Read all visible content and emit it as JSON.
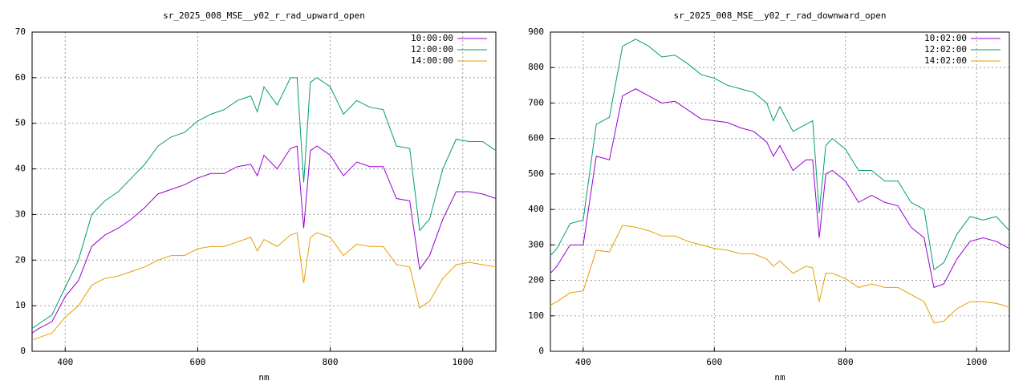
{
  "chart_data": [
    {
      "type": "line",
      "title": "sr_2025_008_MSE__y02_r_rad_upward_open",
      "x_label": "nm",
      "x": [
        350,
        360,
        380,
        400,
        420,
        440,
        460,
        480,
        500,
        520,
        540,
        560,
        580,
        600,
        620,
        640,
        660,
        680,
        690,
        700,
        720,
        740,
        750,
        760,
        770,
        780,
        800,
        820,
        840,
        860,
        880,
        900,
        920,
        935,
        950,
        970,
        990,
        1010,
        1030,
        1050
      ],
      "xlim": [
        350,
        1050
      ],
      "xticks": [
        400,
        600,
        800,
        1000
      ],
      "ylim": [
        0,
        70
      ],
      "yticks": [
        0,
        10,
        20,
        30,
        40,
        50,
        60,
        70
      ],
      "grid": true,
      "legend": "top-right",
      "series": [
        {
          "name": "10:00:00",
          "color": "#9400d3",
          "values": [
            4,
            5,
            6.5,
            12,
            15.5,
            23,
            25.5,
            27,
            29,
            31.5,
            34.5,
            35.5,
            36.5,
            38,
            39,
            39,
            40.5,
            41,
            38.5,
            43,
            40,
            44.5,
            45,
            27,
            44,
            45,
            43,
            38.5,
            41.5,
            40.5,
            40.5,
            33.5,
            33,
            18,
            21,
            29,
            35,
            35,
            34.5,
            33.5
          ]
        },
        {
          "name": "12:00:00",
          "color": "#009e73",
          "values": [
            5,
            6,
            8,
            14,
            20,
            30,
            33,
            35,
            38,
            41,
            45,
            47,
            48,
            50.5,
            52,
            53,
            55,
            56,
            52.5,
            58,
            54,
            60,
            60,
            37,
            59,
            60,
            58,
            52,
            55,
            53.5,
            53,
            45,
            44.5,
            26.5,
            29,
            40,
            46.5,
            46,
            46,
            44
          ]
        },
        {
          "name": "14:00:00",
          "color": "#e69f00",
          "values": [
            2.5,
            3,
            4,
            7.5,
            10,
            14.5,
            16,
            16.5,
            17.5,
            18.5,
            20,
            21,
            21,
            22.5,
            23,
            23,
            24,
            25,
            22,
            24.5,
            23,
            25.5,
            26,
            15,
            25,
            26,
            25,
            21,
            23.5,
            23,
            23,
            19,
            18.5,
            9.5,
            11,
            16,
            19,
            19.5,
            19,
            18.5
          ]
        }
      ]
    },
    {
      "type": "line",
      "title": "sr_2025_008_MSE__y02_r_rad_downward_open",
      "x_label": "nm",
      "x": [
        350,
        360,
        380,
        400,
        420,
        440,
        460,
        480,
        500,
        520,
        540,
        560,
        580,
        600,
        620,
        640,
        660,
        680,
        690,
        700,
        720,
        740,
        750,
        760,
        770,
        780,
        800,
        820,
        840,
        860,
        880,
        900,
        920,
        935,
        950,
        970,
        990,
        1010,
        1030,
        1050
      ],
      "xlim": [
        350,
        1050
      ],
      "xticks": [
        400,
        600,
        800,
        1000
      ],
      "ylim": [
        0,
        900
      ],
      "yticks": [
        0,
        100,
        200,
        300,
        400,
        500,
        600,
        700,
        800,
        900
      ],
      "grid": true,
      "legend": "top-right",
      "series": [
        {
          "name": "10:02:00",
          "color": "#9400d3",
          "values": [
            220,
            240,
            300,
            300,
            550,
            540,
            720,
            740,
            720,
            700,
            705,
            680,
            655,
            650,
            645,
            630,
            620,
            590,
            550,
            580,
            510,
            540,
            540,
            320,
            500,
            510,
            480,
            420,
            440,
            420,
            410,
            350,
            320,
            180,
            190,
            260,
            310,
            320,
            310,
            290
          ]
        },
        {
          "name": "12:02:00",
          "color": "#009e73",
          "values": [
            270,
            290,
            360,
            370,
            640,
            660,
            860,
            880,
            860,
            830,
            835,
            810,
            780,
            770,
            750,
            740,
            730,
            700,
            650,
            690,
            620,
            640,
            650,
            390,
            580,
            600,
            570,
            510,
            510,
            480,
            480,
            420,
            400,
            230,
            250,
            330,
            380,
            370,
            380,
            340
          ]
        },
        {
          "name": "14:02:00",
          "color": "#e69f00",
          "values": [
            130,
            140,
            165,
            170,
            285,
            280,
            355,
            350,
            340,
            325,
            325,
            310,
            300,
            290,
            285,
            275,
            275,
            260,
            240,
            255,
            220,
            240,
            235,
            140,
            220,
            220,
            205,
            180,
            190,
            180,
            180,
            160,
            140,
            80,
            85,
            120,
            140,
            140,
            135,
            125
          ]
        }
      ]
    }
  ]
}
